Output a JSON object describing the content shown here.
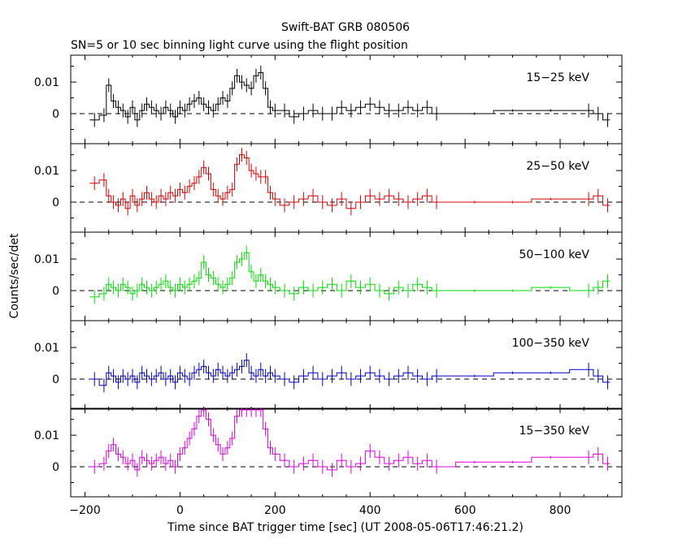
{
  "title": "Swift-BAT GRB 080506",
  "subtitle": "SN=5 or 10 sec binning light curve using the flight position",
  "xlabel": "Time since BAT trigger time [sec] (UT 2008-05-06T17:46:21.2)",
  "ylabel": "Counts/sec/det",
  "chart_data": {
    "type": "line",
    "title": "Swift-BAT GRB 080506",
    "subtitle": "SN=5 or 10 sec binning light curve using the flight position",
    "xlabel": "Time since BAT trigger time [sec] (UT 2008-05-06T17:46:21.2)",
    "ylabel": "Counts/sec/det",
    "xlim": [
      -230,
      930
    ],
    "ylim": [
      -0.0095,
      0.0185
    ],
    "x_ticks": [
      -200,
      0,
      200,
      400,
      600,
      800
    ],
    "x_tick_labels": [
      "−200",
      "0",
      "200",
      "400",
      "600",
      "800"
    ],
    "y_ticks": [
      0,
      0.01
    ],
    "y_tick_labels": [
      "0",
      "0.01"
    ],
    "zero_line": "dashed",
    "panels": [
      {
        "name": "15−25 keV",
        "color": "#000000",
        "x": [
          -180,
          -160,
          -150,
          -140,
          -130,
          -120,
          -110,
          -100,
          -90,
          -80,
          -70,
          -60,
          -50,
          -40,
          -30,
          -20,
          -10,
          0,
          10,
          20,
          30,
          40,
          50,
          60,
          70,
          80,
          90,
          100,
          110,
          120,
          130,
          140,
          150,
          160,
          170,
          180,
          190,
          200,
          220,
          240,
          260,
          280,
          300,
          320,
          340,
          360,
          380,
          400,
          420,
          440,
          460,
          480,
          500,
          520,
          540,
          620,
          700,
          780,
          860,
          880,
          900
        ],
        "y": [
          -0.002,
          -0.0005,
          0.009,
          0.004,
          0.002,
          0.001,
          -0.001,
          0.002,
          -0.002,
          0.001,
          0.003,
          0.002,
          0.001,
          0.0,
          0.002,
          0.001,
          -0.001,
          0.002,
          0.001,
          0.003,
          0.004,
          0.005,
          0.003,
          0.002,
          0.001,
          0.003,
          0.005,
          0.004,
          0.008,
          0.012,
          0.01,
          0.009,
          0.008,
          0.012,
          0.013,
          0.008,
          0.002,
          0.001,
          0.001,
          -0.001,
          0.0,
          0.001,
          0.0,
          0.0,
          0.002,
          0.001,
          0.002,
          0.003,
          0.002,
          0.001,
          0.001,
          0.002,
          0.001,
          0.002,
          0.0,
          0.0,
          0.001,
          0.001,
          0.001,
          0.0,
          -0.002
        ]
      },
      {
        "name": "25−50 keV",
        "color": "#e00000",
        "x": [
          -180,
          -160,
          -150,
          -140,
          -130,
          -120,
          -110,
          -100,
          -90,
          -80,
          -70,
          -60,
          -50,
          -40,
          -30,
          -20,
          -10,
          0,
          10,
          20,
          30,
          40,
          50,
          60,
          70,
          80,
          90,
          100,
          110,
          120,
          130,
          140,
          150,
          160,
          170,
          180,
          190,
          200,
          220,
          240,
          260,
          280,
          300,
          320,
          340,
          360,
          380,
          400,
          420,
          440,
          460,
          480,
          500,
          520,
          540,
          620,
          700,
          780,
          860,
          880,
          900
        ],
        "y": [
          0.006,
          0.007,
          0.002,
          0.0,
          -0.001,
          0.001,
          -0.002,
          0.002,
          -0.001,
          0.001,
          0.003,
          0.001,
          0.0,
          0.002,
          0.001,
          0.003,
          0.002,
          0.004,
          0.003,
          0.005,
          0.006,
          0.008,
          0.011,
          0.009,
          0.004,
          0.002,
          0.001,
          0.003,
          0.004,
          0.012,
          0.015,
          0.014,
          0.01,
          0.009,
          0.008,
          0.008,
          0.003,
          0.001,
          -0.001,
          0.0,
          0.001,
          0.002,
          0.0,
          -0.001,
          0.001,
          -0.002,
          0.0,
          0.002,
          0.001,
          0.002,
          0.001,
          0.0,
          0.001,
          0.002,
          0.0,
          0.0,
          0.0,
          0.001,
          0.001,
          0.002,
          -0.001
        ]
      },
      {
        "name": "50−100 keV",
        "color": "#00e000",
        "x": [
          -180,
          -160,
          -150,
          -140,
          -130,
          -120,
          -110,
          -100,
          -90,
          -80,
          -70,
          -60,
          -50,
          -40,
          -30,
          -20,
          -10,
          0,
          10,
          20,
          30,
          40,
          50,
          60,
          70,
          80,
          90,
          100,
          110,
          120,
          130,
          140,
          150,
          160,
          170,
          180,
          190,
          200,
          220,
          240,
          260,
          280,
          300,
          320,
          340,
          360,
          380,
          400,
          420,
          440,
          460,
          480,
          500,
          520,
          540,
          620,
          700,
          780,
          860,
          880,
          900
        ],
        "y": [
          -0.002,
          -0.001,
          0.002,
          0.001,
          0.0,
          0.002,
          0.001,
          -0.001,
          0.0,
          0.002,
          0.001,
          0.0,
          0.001,
          0.002,
          0.003,
          0.001,
          0.0,
          0.002,
          0.001,
          0.002,
          0.003,
          0.004,
          0.009,
          0.005,
          0.004,
          0.002,
          0.001,
          0.002,
          0.004,
          0.009,
          0.01,
          0.012,
          0.006,
          0.003,
          0.005,
          0.003,
          0.002,
          0.001,
          0.0,
          -0.001,
          0.001,
          0.0,
          0.001,
          0.002,
          0.0,
          0.003,
          0.001,
          0.002,
          0.0,
          -0.001,
          0.001,
          0.0,
          0.002,
          0.001,
          0.0,
          0.0,
          0.0,
          0.001,
          0.0,
          0.001,
          0.003
        ]
      },
      {
        "name": "100−350 keV",
        "color": "#0000cc",
        "x": [
          -180,
          -160,
          -150,
          -140,
          -130,
          -120,
          -110,
          -100,
          -90,
          -80,
          -70,
          -60,
          -50,
          -40,
          -30,
          -20,
          -10,
          0,
          10,
          20,
          30,
          40,
          50,
          60,
          70,
          80,
          90,
          100,
          110,
          120,
          130,
          140,
          150,
          160,
          170,
          180,
          190,
          200,
          220,
          240,
          260,
          280,
          300,
          320,
          340,
          360,
          380,
          400,
          420,
          440,
          460,
          480,
          500,
          520,
          540,
          620,
          700,
          780,
          860,
          880,
          900
        ],
        "y": [
          0.0,
          -0.002,
          0.002,
          0.001,
          -0.001,
          0.001,
          0.0,
          0.001,
          -0.001,
          0.002,
          0.001,
          0.0,
          0.001,
          0.002,
          0.0,
          0.001,
          -0.001,
          0.002,
          0.001,
          0.0,
          0.002,
          0.003,
          0.004,
          0.002,
          0.001,
          0.003,
          0.002,
          0.001,
          0.002,
          0.003,
          0.004,
          0.006,
          0.002,
          0.001,
          0.003,
          0.001,
          0.002,
          0.001,
          0.0,
          -0.001,
          0.001,
          0.002,
          0.0,
          0.001,
          0.002,
          0.0,
          0.001,
          0.002,
          0.001,
          0.0,
          0.001,
          0.002,
          0.001,
          0.0,
          0.001,
          0.001,
          0.002,
          0.002,
          0.003,
          0.001,
          -0.001
        ]
      },
      {
        "name": "15−350 keV",
        "color": "#e000e0",
        "x": [
          -180,
          -160,
          -150,
          -140,
          -130,
          -120,
          -110,
          -100,
          -90,
          -80,
          -70,
          -60,
          -50,
          -40,
          -30,
          -20,
          -10,
          0,
          10,
          20,
          30,
          40,
          50,
          60,
          70,
          80,
          90,
          100,
          110,
          120,
          130,
          140,
          150,
          160,
          170,
          180,
          190,
          200,
          220,
          240,
          260,
          280,
          300,
          320,
          340,
          360,
          380,
          400,
          420,
          440,
          460,
          480,
          500,
          520,
          540,
          620,
          700,
          780,
          860,
          880,
          900
        ],
        "y": [
          0.0,
          0.001,
          0.005,
          0.007,
          0.004,
          0.003,
          0.001,
          0.002,
          -0.001,
          0.003,
          0.002,
          0.001,
          0.002,
          0.003,
          0.001,
          0.002,
          0.0,
          0.004,
          0.006,
          0.009,
          0.012,
          0.016,
          0.018,
          0.015,
          0.01,
          0.007,
          0.004,
          0.006,
          0.009,
          0.016,
          0.018,
          0.018,
          0.018,
          0.018,
          0.018,
          0.012,
          0.006,
          0.004,
          0.002,
          0.0,
          0.001,
          0.002,
          0.0,
          -0.001,
          0.002,
          0.0,
          0.001,
          0.005,
          0.003,
          0.001,
          0.002,
          0.003,
          0.001,
          0.002,
          0.0,
          0.0015,
          0.0015,
          0.003,
          0.003,
          0.004,
          0.001
        ]
      }
    ]
  }
}
